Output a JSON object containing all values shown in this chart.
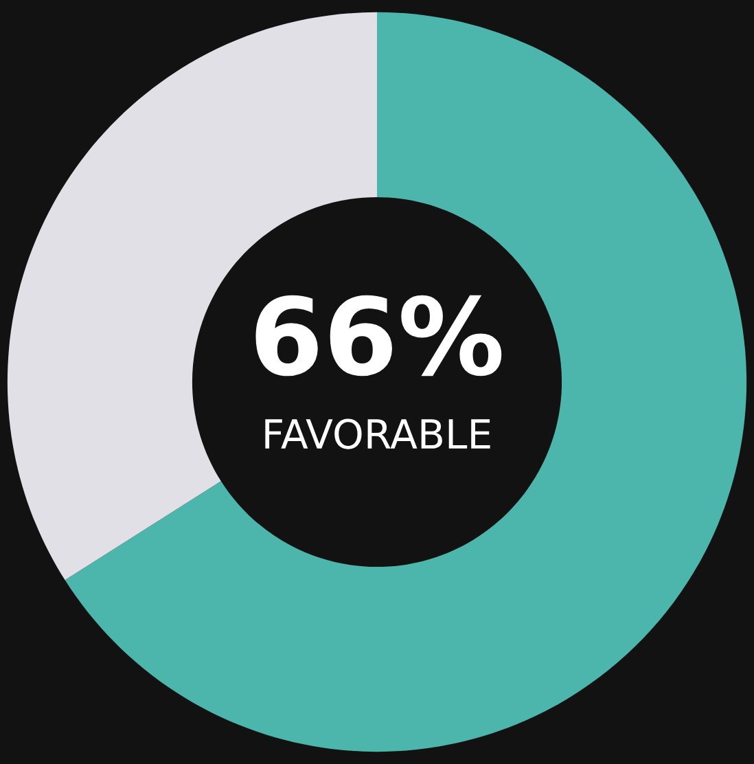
{
  "chart_data": {
    "type": "donut",
    "categories": [
      null,
      null
    ],
    "values": [
      66,
      34
    ],
    "colors": [
      "#4db6ac",
      "#e0e0e6"
    ],
    "annotations": [
      "66%",
      "FAVORABLE"
    ]
  }
}
